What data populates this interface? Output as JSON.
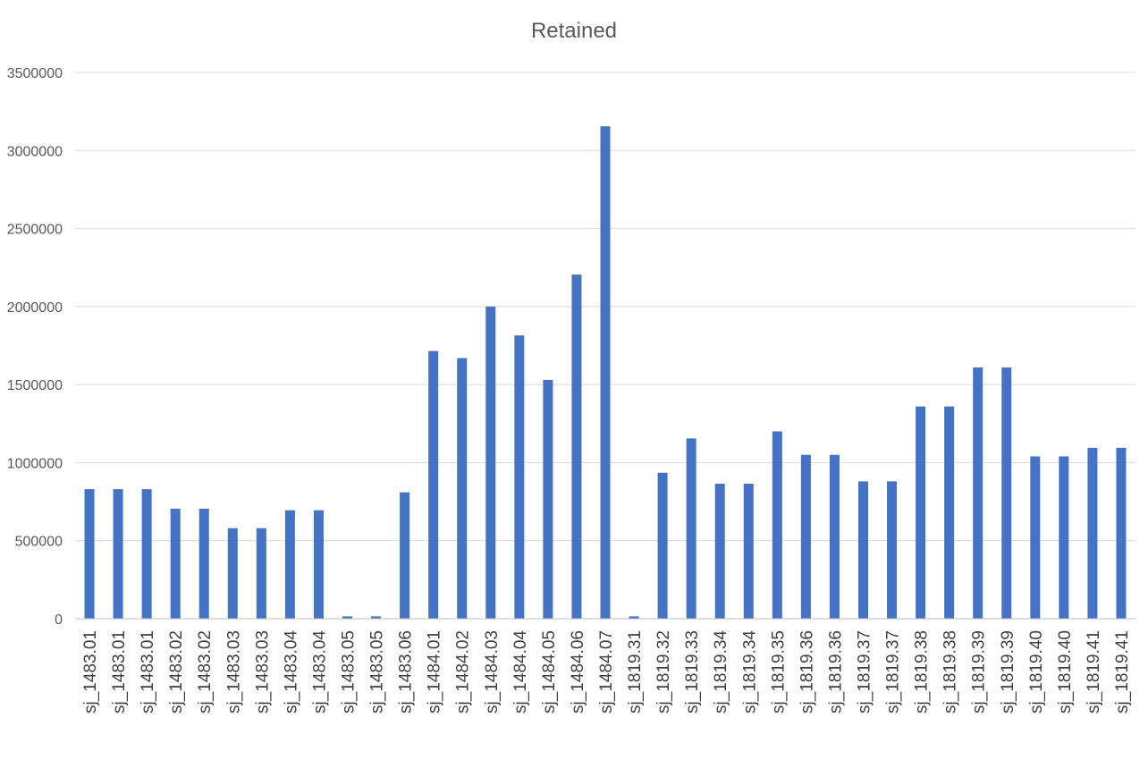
{
  "chart_data": {
    "type": "bar",
    "title": "Retained",
    "xlabel": "",
    "ylabel": "",
    "ylim": [
      0,
      3500000
    ],
    "yticks": [
      0,
      500000,
      1000000,
      1500000,
      2000000,
      2500000,
      3000000,
      3500000
    ],
    "ytick_labels": [
      "0",
      "500000",
      "1000000",
      "1500000",
      "2000000",
      "2500000",
      "3000000",
      "3500000"
    ],
    "grid": true,
    "legend": "none",
    "bar_color": "#4472c4",
    "categories": [
      "sj_1483.01",
      "sj_1483.01",
      "sj_1483.01",
      "sj_1483.02",
      "sj_1483.02",
      "sj_1483.03",
      "sj_1483.03",
      "sj_1483.04",
      "sj_1483.04",
      "sj_1483.05",
      "sj_1483.05",
      "sj_1483.06",
      "sj_1484.01",
      "sj_1484.02",
      "sj_1484.03",
      "sj_1484.04",
      "sj_1484.05",
      "sj_1484.06",
      "sj_1484.07",
      "sj_1819.31",
      "sj_1819.32",
      "sj_1819.33",
      "sj_1819.34",
      "sj_1819.34",
      "sj_1819.35",
      "sj_1819.36",
      "sj_1819.36",
      "sj_1819.37",
      "sj_1819.37",
      "sj_1819.38",
      "sj_1819.38",
      "sj_1819.39",
      "sj_1819.39",
      "sj_1819.40",
      "sj_1819.40",
      "sj_1819.41",
      "sj_1819.41"
    ],
    "values": [
      830000,
      830000,
      830000,
      705000,
      705000,
      580000,
      580000,
      695000,
      695000,
      15000,
      15000,
      810000,
      1715000,
      1670000,
      2000000,
      1815000,
      1530000,
      2205000,
      3155000,
      15000,
      935000,
      1155000,
      865000,
      865000,
      1200000,
      1050000,
      1050000,
      880000,
      880000,
      1360000,
      1360000,
      1610000,
      1610000,
      1040000,
      1040000,
      1095000,
      1095000
    ]
  }
}
